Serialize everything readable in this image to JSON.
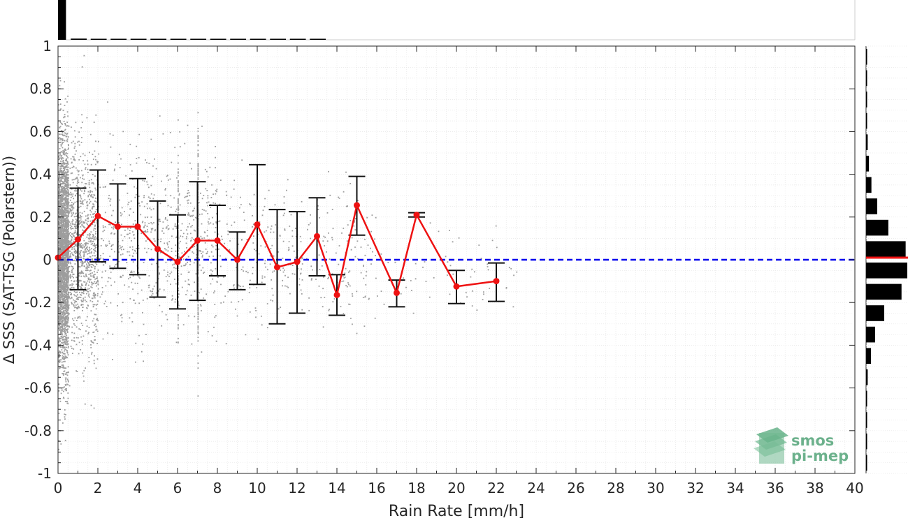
{
  "chart_data": {
    "type": "scatter",
    "xlabel": "Rain Rate [mm/h]",
    "ylabel": "Δ SSS (SAT-TSG (Polarstern))",
    "xlim": [
      0,
      40
    ],
    "ylim": [
      -1,
      1
    ],
    "x_ticks": [
      "0",
      "2",
      "4",
      "6",
      "8",
      "10",
      "12",
      "14",
      "16",
      "18",
      "20",
      "22",
      "24",
      "26",
      "28",
      "30",
      "32",
      "34",
      "36",
      "38",
      "40"
    ],
    "y_ticks": [
      "-1",
      "-0.8",
      "-0.6",
      "-0.4",
      "-0.2",
      "0",
      "0.2",
      "0.4",
      "0.6",
      "0.8",
      "1"
    ],
    "grid": true,
    "reference_line": {
      "y": 0,
      "style": "dashed",
      "color": "#0000ee"
    },
    "series": [
      {
        "name": "",
        "type": "line-with-errorbars",
        "color": "#ee1111",
        "points": [
          {
            "x": 0,
            "y": 0.01,
            "low": 0.01,
            "high": 0.01
          },
          {
            "x": 1,
            "y": 0.095,
            "low": -0.14,
            "high": 0.335
          },
          {
            "x": 2,
            "y": 0.205,
            "low": -0.01,
            "high": 0.42
          },
          {
            "x": 3,
            "y": 0.155,
            "low": -0.04,
            "high": 0.355
          },
          {
            "x": 4,
            "y": 0.155,
            "low": -0.07,
            "high": 0.38
          },
          {
            "x": 5,
            "y": 0.05,
            "low": -0.175,
            "high": 0.275
          },
          {
            "x": 6,
            "y": -0.01,
            "low": -0.23,
            "high": 0.21
          },
          {
            "x": 7,
            "y": 0.09,
            "low": -0.19,
            "high": 0.365
          },
          {
            "x": 8,
            "y": 0.09,
            "low": -0.075,
            "high": 0.255
          },
          {
            "x": 9,
            "y": 0.0,
            "low": -0.14,
            "high": 0.13
          },
          {
            "x": 10,
            "y": 0.165,
            "low": -0.115,
            "high": 0.445
          },
          {
            "x": 11,
            "y": -0.035,
            "low": -0.3,
            "high": 0.235
          },
          {
            "x": 12,
            "y": -0.01,
            "low": -0.25,
            "high": 0.225
          },
          {
            "x": 13,
            "y": 0.11,
            "low": -0.075,
            "high": 0.29
          },
          {
            "x": 14,
            "y": -0.165,
            "low": -0.26,
            "high": -0.07
          },
          {
            "x": 15,
            "y": 0.255,
            "low": 0.115,
            "high": 0.39
          },
          {
            "x": 17,
            "y": -0.155,
            "low": -0.22,
            "high": -0.095
          },
          {
            "x": 18,
            "y": 0.21,
            "low": 0.2,
            "high": 0.22
          },
          {
            "x": 20,
            "y": -0.125,
            "low": -0.205,
            "high": -0.05
          },
          {
            "x": 22,
            "y": -0.1,
            "low": -0.195,
            "high": -0.015
          }
        ]
      }
    ],
    "scatter_color": "#8c8c8c",
    "marginal_x_histogram": {
      "bins": [
        0,
        0.5,
        1.5,
        2.5,
        3.5,
        4.5,
        5.5,
        6.5,
        7.5,
        8.5,
        9.5,
        10.5,
        11.5,
        12.5,
        13.5
      ],
      "fractions": [
        1.0,
        0.03,
        0.02,
        0.015,
        0.012,
        0.01,
        0.01,
        0.009,
        0.008,
        0.007,
        0.006,
        0.005,
        0.004,
        0.003
      ]
    },
    "marginal_y_histogram": {
      "bin_width": 0.1,
      "centers": [
        -0.95,
        -0.85,
        -0.75,
        -0.65,
        -0.55,
        -0.45,
        -0.35,
        -0.25,
        -0.15,
        -0.05,
        0.05,
        0.15,
        0.25,
        0.35,
        0.45,
        0.55,
        0.65,
        0.75,
        0.85,
        0.95
      ],
      "fractions": [
        0.01,
        0.01,
        0.015,
        0.02,
        0.04,
        0.12,
        0.22,
        0.44,
        0.86,
        1.0,
        0.96,
        0.54,
        0.27,
        0.13,
        0.07,
        0.04,
        0.02,
        0.01,
        0.01,
        0.005
      ],
      "median_line": {
        "y": 0.01,
        "color": "#ee1111"
      }
    }
  },
  "watermark": {
    "line1": "smos",
    "line2": "pi-mep",
    "color": "#5fae83"
  }
}
